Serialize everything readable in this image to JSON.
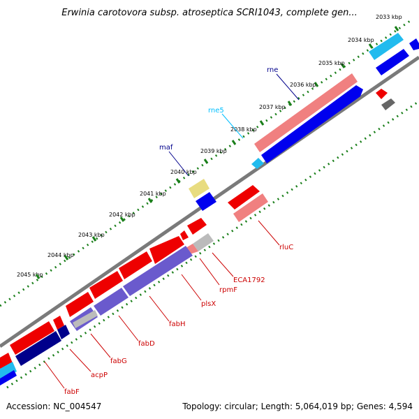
{
  "title": "Erwinia carotovora subsp. atroseptica SCRI1043, complete gen...",
  "footer": {
    "accession": "Accession: NC_004547",
    "summary": "Topology: circular; Length: 5,064,019 bp; Genes: 4,594"
  },
  "ticks": [
    {
      "label": "2033 kbp",
      "mb": 2033
    },
    {
      "label": "2034 kbp",
      "mb": 2034
    },
    {
      "label": "2035 kbp",
      "mb": 2035
    },
    {
      "label": "2036 kbp",
      "mb": 2036
    },
    {
      "label": "2037 kbp",
      "mb": 2037
    },
    {
      "label": "2038 kbp",
      "mb": 2038
    },
    {
      "label": "2039 kbp",
      "mb": 2039
    },
    {
      "label": "2040 kbp",
      "mb": 2040
    },
    {
      "label": "2041 kbp",
      "mb": 2041
    },
    {
      "label": "2042 kbp",
      "mb": 2042
    },
    {
      "label": "2043 kbp",
      "mb": 2043
    },
    {
      "label": "2044 kbp",
      "mb": 2044
    },
    {
      "label": "2045 kbp",
      "mb": 2045
    }
  ],
  "gene_labels": [
    {
      "name": "rne",
      "color": "#00008b"
    },
    {
      "name": "rne5",
      "color": "#00bfff"
    },
    {
      "name": "maf",
      "color": "#00008b"
    },
    {
      "name": "rluC",
      "color": "#cc0000"
    },
    {
      "name": "ECA1792",
      "color": "#cc0000"
    },
    {
      "name": "rpmF",
      "color": "#cc0000"
    },
    {
      "name": "plsX",
      "color": "#cc0000"
    },
    {
      "name": "fabH",
      "color": "#cc0000"
    },
    {
      "name": "fabD",
      "color": "#cc0000"
    },
    {
      "name": "fabG",
      "color": "#cc0000"
    },
    {
      "name": "acpP",
      "color": "#cc0000"
    },
    {
      "name": "fabF",
      "color": "#cc0000"
    }
  ],
  "colors": {
    "forward_gene": "#0000ee",
    "reverse_gene": "#ee0000",
    "cds_light_red": "#f08080",
    "cds_light_blue": "#22bbee",
    "rna_blue_purple": "#6a5acd",
    "dark_navy": "#00008b",
    "grey_feature": "#bbbbbb",
    "khaki_feature": "#e8dc80",
    "tick_green": "#1a7f1a",
    "backbone": "#7a7a7a"
  }
}
